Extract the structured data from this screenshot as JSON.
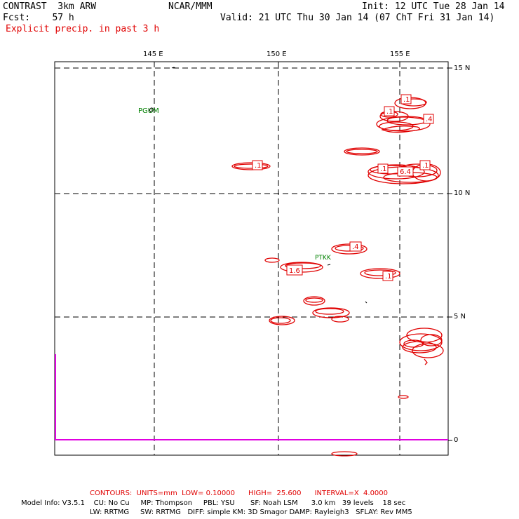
{
  "header": {
    "model": "CONTRAST  3km ARW",
    "org": "NCAR/MMM",
    "init": "Init: 12 UTC Tue 28 Jan 14",
    "fcst": "Fcst:    57 h",
    "valid": "Valid: 21 UTC Thu 30 Jan 14 (07 ChT Fri 31 Jan 14)",
    "field": "Explicit precip. in past 3 h"
  },
  "axes": {
    "lon_labels": [
      "145 E",
      "150 E",
      "155 E"
    ],
    "lat_labels": [
      "15 N",
      "10 N",
      "5 N",
      "0"
    ]
  },
  "stations": [
    {
      "id": "PGUM"
    },
    {
      "id": "PTKK"
    }
  ],
  "contour_labels": [
    ".1",
    ".1",
    ".4",
    ".1",
    ".1",
    "6.4",
    ".1",
    ".4",
    "1.6",
    ".1"
  ],
  "colors": {
    "precip_contour": "#e00000",
    "station_text": "#008000",
    "axis_line": "#e000e0",
    "grid": "#000000"
  },
  "footer": {
    "contours": "CONTOURS:  UNITS=mm  LOW= 0.10000      HIGH=  25.600      INTERVAL=X  4.0000",
    "model_info_1": "Model Info: V3.5.1    CU: No Cu     MP: Thompson     PBL: YSU       SF: Noah LSM      3.0 km   39 levels    18 sec",
    "model_info_2": "LW: RRTMG     SW: RRTMG   DIFF: simple KM: 3D Smagor DAMP: Rayleigh3   SFLAY: Rev MM5"
  }
}
